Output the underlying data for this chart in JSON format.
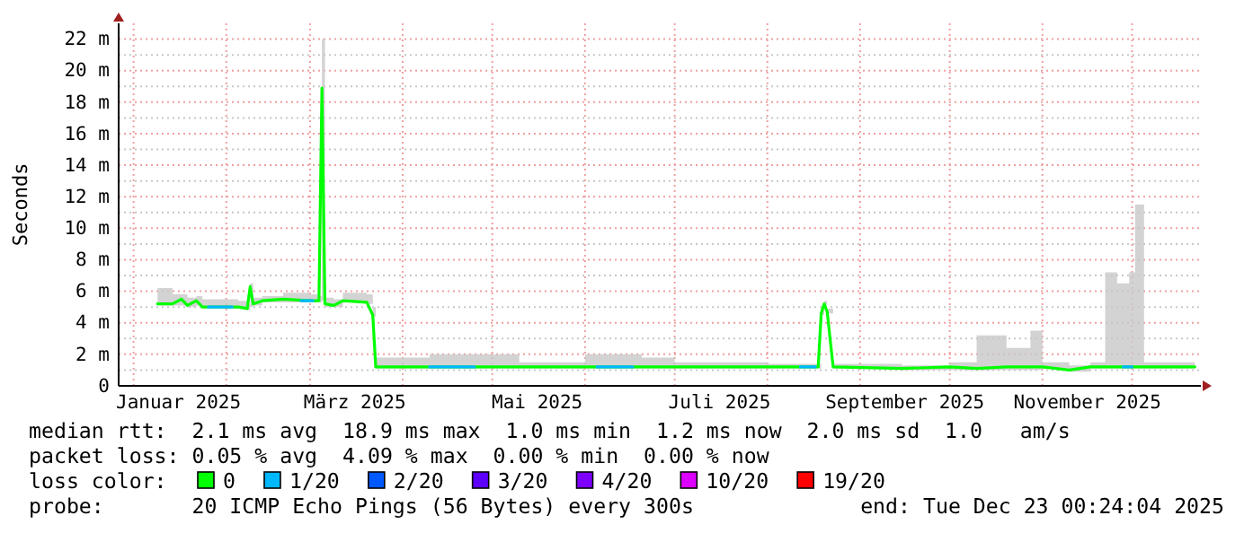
{
  "chart_data": {
    "type": "line",
    "ylabel": "Seconds",
    "xlim": [
      "2024-12-27",
      "2025-12-24"
    ],
    "xticks": [
      {
        "value": "2025-01-01",
        "label": null
      },
      {
        "value": "2025-01-16",
        "label": "Januar 2025"
      },
      {
        "value": "2025-02-01",
        "label": null
      },
      {
        "value": "2025-03-01",
        "label": null
      },
      {
        "value": "2025-03-16",
        "label": "März 2025"
      },
      {
        "value": "2025-04-01",
        "label": null
      },
      {
        "value": "2025-05-01",
        "label": null
      },
      {
        "value": "2025-05-16",
        "label": "Mai 2025"
      },
      {
        "value": "2025-06-01",
        "label": null
      },
      {
        "value": "2025-07-01",
        "label": null
      },
      {
        "value": "2025-07-16",
        "label": "Juli 2025"
      },
      {
        "value": "2025-08-01",
        "label": null
      },
      {
        "value": "2025-09-01",
        "label": null
      },
      {
        "value": "2025-09-16",
        "label": "September 2025"
      },
      {
        "value": "2025-10-01",
        "label": null
      },
      {
        "value": "2025-11-01",
        "label": null
      },
      {
        "value": "2025-11-16",
        "label": "November 2025"
      },
      {
        "value": "2025-12-01",
        "label": null
      }
    ],
    "ylim": [
      0,
      23
    ],
    "yticks": [
      0,
      {
        "value": 1,
        "label": null
      },
      {
        "value": 2,
        "label": "2 m"
      },
      {
        "value": 3,
        "label": null
      },
      {
        "value": 4,
        "label": "4 m"
      },
      {
        "value": 5,
        "label": null
      },
      {
        "value": 6,
        "label": "6 m"
      },
      {
        "value": 7,
        "label": null
      },
      {
        "value": 8,
        "label": "8 m"
      },
      {
        "value": 9,
        "label": null
      },
      {
        "value": 10,
        "label": "10 m"
      },
      {
        "value": 11,
        "label": null
      },
      {
        "value": 12,
        "label": "12 m"
      },
      {
        "value": 13,
        "label": null
      },
      {
        "value": 14,
        "label": "14 m"
      },
      {
        "value": 15,
        "label": null
      },
      {
        "value": 16,
        "label": "16 m"
      },
      {
        "value": 17,
        "label": null
      },
      {
        "value": 18,
        "label": "18 m"
      },
      {
        "value": 19,
        "label": null
      },
      {
        "value": 20,
        "label": "20 m"
      },
      {
        "value": 21,
        "label": null
      },
      {
        "value": 22,
        "label": "22 m"
      }
    ],
    "grid": true,
    "legend": "bottom",
    "legend_title": "loss color:",
    "x": [
      "2025-01-09",
      "2025-01-14",
      "2025-01-17",
      "2025-01-19",
      "2025-01-22",
      "2025-01-24",
      "2025-02-05",
      "2025-02-08",
      "2025-02-09",
      "2025-02-10",
      "2025-02-13",
      "2025-02-20",
      "2025-03-01",
      "2025-03-04",
      "2025-03-05",
      "2025-03-06",
      "2025-03-09",
      "2025-03-12",
      "2025-03-20",
      "2025-03-22",
      "2025-03-23",
      "2025-04-10",
      "2025-05-10",
      "2025-06-01",
      "2025-06-20",
      "2025-07-01",
      "2025-08-01",
      "2025-08-18",
      "2025-08-19",
      "2025-08-20",
      "2025-08-21",
      "2025-08-23",
      "2025-09-15",
      "2025-10-01",
      "2025-10-10",
      "2025-10-20",
      "2025-10-28",
      "2025-11-01",
      "2025-11-10",
      "2025-11-17",
      "2025-11-22",
      "2025-11-26",
      "2025-11-30",
      "2025-12-02",
      "2025-12-05",
      "2025-12-22"
    ],
    "series": [
      {
        "name": "0",
        "color": "#00ff00",
        "values": [
          5.2,
          5.2,
          5.5,
          5.1,
          5.4,
          5.0,
          5.0,
          4.9,
          6.3,
          5.2,
          5.4,
          5.5,
          5.4,
          5.4,
          18.9,
          5.2,
          5.1,
          5.4,
          5.3,
          4.5,
          1.2,
          1.2,
          1.2,
          1.2,
          1.2,
          1.2,
          1.2,
          1.2,
          4.6,
          5.2,
          4.7,
          1.2,
          1.1,
          1.2,
          1.1,
          1.2,
          1.2,
          1.2,
          1.0,
          1.2,
          1.2,
          1.2,
          1.2,
          1.2,
          1.2,
          1.2
        ],
        "lower": [
          5.1,
          5.1,
          5.1,
          5.0,
          5.1,
          4.9,
          4.9,
          4.8,
          5.0,
          5.1,
          5.3,
          5.3,
          5.3,
          5.3,
          5.4,
          5.0,
          5.0,
          5.3,
          5.2,
          4.4,
          1.1,
          1.1,
          1.1,
          1.1,
          1.1,
          1.1,
          1.1,
          1.1,
          4.5,
          5.1,
          4.6,
          1.1,
          1.0,
          1.0,
          1.0,
          1.0,
          1.0,
          1.1,
          0.9,
          1.1,
          1.1,
          1.1,
          1.1,
          1.1,
          1.1,
          1.1
        ],
        "upper": [
          6.2,
          5.8,
          5.8,
          5.6,
          5.7,
          5.5,
          5.4,
          5.2,
          6.5,
          5.6,
          5.7,
          5.9,
          5.8,
          5.7,
          22.0,
          5.6,
          5.5,
          5.9,
          5.8,
          5.0,
          1.8,
          2.0,
          1.5,
          2.0,
          1.8,
          1.5,
          1.4,
          1.4,
          4.8,
          5.4,
          4.9,
          1.4,
          1.3,
          1.5,
          3.2,
          2.4,
          3.5,
          1.5,
          1.3,
          1.5,
          7.2,
          6.5,
          7.2,
          11.5,
          1.5,
          1.4
        ]
      },
      {
        "name": "1/20",
        "color": "#00b8ff",
        "x": [
          "2025-01-26",
          "2025-02-03",
          null,
          "2025-02-26",
          "2025-03-02",
          null,
          "2025-04-10",
          "2025-04-25",
          null,
          "2025-06-05",
          "2025-06-17",
          null,
          "2025-08-12",
          "2025-08-17",
          null,
          "2025-11-28",
          "2025-12-01"
        ],
        "values": [
          5.0,
          5.0,
          null,
          5.4,
          5.4,
          null,
          1.2,
          1.2,
          null,
          1.2,
          1.2,
          null,
          1.2,
          1.2,
          null,
          1.2,
          1.2
        ]
      },
      {
        "name": "2/20",
        "color": "#0059ff",
        "values": [
          null,
          null,
          null,
          null,
          null,
          null,
          null,
          null,
          null,
          null,
          null,
          null,
          null,
          null,
          null,
          null,
          null,
          null,
          null,
          null,
          null,
          null,
          null,
          null,
          null,
          null,
          null,
          null,
          null,
          null,
          null,
          null,
          null,
          null,
          null,
          null,
          null,
          null,
          null,
          null,
          null,
          null,
          null,
          null,
          null,
          null
        ]
      },
      {
        "name": "3/20",
        "color": "#5e00ff",
        "values": [
          null,
          null,
          null,
          null,
          null,
          null,
          null,
          null,
          null,
          null,
          null,
          null,
          null,
          null,
          null,
          null,
          null,
          null,
          null,
          null,
          null,
          null,
          null,
          null,
          null,
          null,
          null,
          null,
          null,
          null,
          null,
          null,
          null,
          null,
          null,
          null,
          null,
          null,
          null,
          null,
          null,
          null,
          null,
          null,
          null,
          null
        ]
      },
      {
        "name": "4/20",
        "color": "#7e00ff",
        "values": [
          null,
          null,
          null,
          null,
          null,
          null,
          null,
          null,
          null,
          null,
          null,
          null,
          null,
          null,
          null,
          null,
          null,
          null,
          null,
          null,
          null,
          null,
          null,
          null,
          null,
          null,
          null,
          null,
          null,
          null,
          null,
          null,
          null,
          null,
          null,
          null,
          null,
          null,
          null,
          null,
          null,
          null,
          null,
          null,
          null,
          null
        ]
      },
      {
        "name": "10/20",
        "color": "#dd00ff",
        "values": [
          null,
          null,
          null,
          null,
          null,
          null,
          null,
          null,
          null,
          null,
          null,
          null,
          null,
          null,
          null,
          null,
          null,
          null,
          null,
          null,
          null,
          null,
          null,
          null,
          null,
          null,
          null,
          null,
          null,
          null,
          null,
          null,
          null,
          null,
          null,
          null,
          null,
          null,
          null,
          null,
          null,
          null,
          null,
          null,
          null,
          null
        ]
      },
      {
        "name": "19/20",
        "color": "#ff0000",
        "values": [
          null,
          null,
          null,
          null,
          null,
          null,
          null,
          null,
          null,
          null,
          null,
          null,
          null,
          null,
          null,
          null,
          null,
          null,
          null,
          null,
          null,
          null,
          null,
          null,
          null,
          null,
          null,
          null,
          null,
          null,
          null,
          null,
          null,
          null,
          null,
          null,
          null,
          null,
          null,
          null,
          null,
          null,
          null,
          null,
          null,
          null
        ]
      }
    ],
    "annotations": [
      "median rtt:  2.1 ms avg  18.9 ms max  1.0 ms min  1.2 ms now  2.0 ms sd  1.0   am/s",
      "packet loss: 0.05 % avg  4.09 % max  0.00 % min  0.00 % now",
      "probe:       20 ICMP Echo Pings (56 Bytes) every 300s",
      "end: Tue Dec 23 00:24:04 2025"
    ]
  }
}
